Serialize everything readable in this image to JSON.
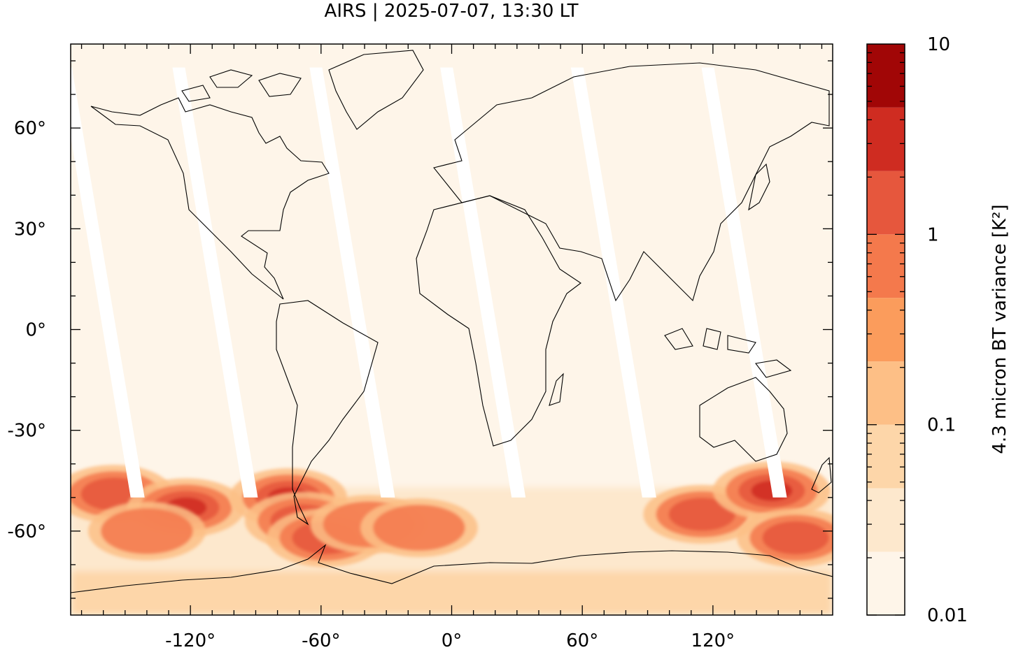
{
  "chart_data": {
    "type": "heatmap",
    "title": "AIRS | 2025-07-07, 13:30 LT",
    "projection": "equirectangular",
    "x_ticks": [
      {
        "value": -120,
        "label": "-120°"
      },
      {
        "value": -60,
        "label": "-60°"
      },
      {
        "value": 0,
        "label": "0°"
      },
      {
        "value": 60,
        "label": "60°"
      },
      {
        "value": 120,
        "label": "120°"
      }
    ],
    "y_ticks": [
      {
        "value": 60,
        "label": "60°"
      },
      {
        "value": 30,
        "label": "30°"
      },
      {
        "value": 0,
        "label": "0°"
      },
      {
        "value": -30,
        "label": "-30°"
      },
      {
        "value": -60,
        "label": "-60°"
      }
    ],
    "xlim": [
      -175,
      175
    ],
    "ylim": [
      -85,
      85
    ],
    "grid": false,
    "colorbar": {
      "label": "4.3 micron BT variance [K²]",
      "scale": "log",
      "range": [
        0.01,
        10
      ],
      "tick_labels": [
        {
          "value": 0.01,
          "label": "0.01"
        },
        {
          "value": 0.1,
          "label": "0.1"
        },
        {
          "value": 1,
          "label": "1"
        },
        {
          "value": 10,
          "label": "10"
        }
      ],
      "levels": [
        {
          "from": 0.01,
          "to": 0.0215,
          "color": "#fef5e9"
        },
        {
          "from": 0.0215,
          "to": 0.0464,
          "color": "#fde8cd"
        },
        {
          "from": 0.0464,
          "to": 0.1,
          "color": "#fdd6a9"
        },
        {
          "from": 0.1,
          "to": 0.215,
          "color": "#fdbf86"
        },
        {
          "from": 0.215,
          "to": 0.464,
          "color": "#fb9c5c"
        },
        {
          "from": 0.464,
          "to": 1.0,
          "color": "#f4794c"
        },
        {
          "from": 1.0,
          "to": 2.15,
          "color": "#e6573d"
        },
        {
          "from": 2.15,
          "to": 4.64,
          "color": "#cf2c21"
        },
        {
          "from": 4.64,
          "to": 10,
          "color": "#a10606"
        }
      ]
    },
    "swath_gaps_at_equator_lon": [
      -160,
      -108,
      -45,
      15,
      75,
      135
    ],
    "hotspots": [
      {
        "lon": -155,
        "lat": -49,
        "value": 1.5
      },
      {
        "lon": -122,
        "lat": -53,
        "value": 3.5
      },
      {
        "lon": -140,
        "lat": -60,
        "value": 0.8
      },
      {
        "lon": -75,
        "lat": -50,
        "value": 3.0
      },
      {
        "lon": -68,
        "lat": -57,
        "value": 2.5
      },
      {
        "lon": -58,
        "lat": -62,
        "value": 1.5
      },
      {
        "lon": -38,
        "lat": -58,
        "value": 0.8
      },
      {
        "lon": -15,
        "lat": -59,
        "value": 0.6
      },
      {
        "lon": 115,
        "lat": -55,
        "value": 1.2
      },
      {
        "lon": 147,
        "lat": -48,
        "value": 3.5
      },
      {
        "lon": 158,
        "lat": -62,
        "value": 1.8
      }
    ]
  }
}
